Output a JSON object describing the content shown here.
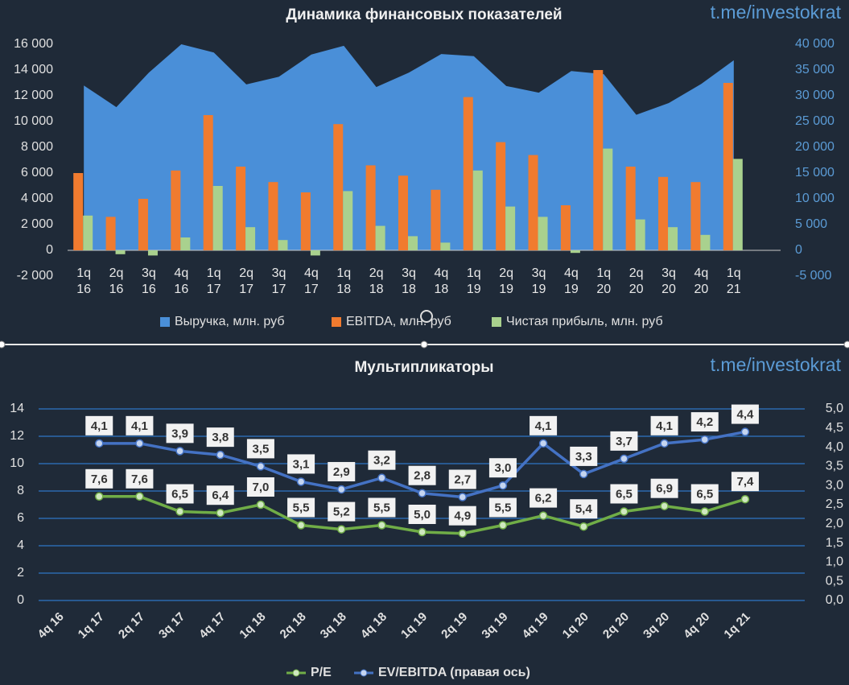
{
  "chart_data": [
    {
      "type": "bar-area",
      "title": "Динамика финансовых показателей",
      "annotation": "t.me/investokrat",
      "categories": [
        "1q 16",
        "2q 16",
        "3q 16",
        "4q 16",
        "1q 17",
        "2q 17",
        "3q 17",
        "4q 17",
        "1q 18",
        "2q 18",
        "3q 18",
        "4q 18",
        "1q 19",
        "2q 19",
        "3q 19",
        "4q 19",
        "1q 20",
        "2q 20",
        "3q 20",
        "4q 20",
        "1q 21"
      ],
      "series": [
        {
          "name": "Выручка, млн. руб",
          "color": "#4a8fd8",
          "kind": "area",
          "axis": "y2",
          "values": [
            32000,
            27800,
            34500,
            40000,
            38400,
            32200,
            33700,
            38000,
            39700,
            31700,
            34500,
            38100,
            37700,
            31900,
            30600,
            34800,
            34200,
            26300,
            28600,
            32300,
            36900
          ]
        },
        {
          "name": "EBITDA, млн. руб",
          "color": "#f07b2f",
          "kind": "bar",
          "values": [
            6000,
            2600,
            4000,
            6200,
            10500,
            6500,
            5300,
            4500,
            9800,
            6600,
            5800,
            4700,
            11900,
            8400,
            7400,
            3500,
            14000,
            6500,
            5700,
            5300,
            13000
          ]
        },
        {
          "name": "Чистая прибыль, млн. руб",
          "color": "#a9d18e",
          "kind": "bar",
          "values": [
            2700,
            -300,
            -400,
            1000,
            5000,
            1800,
            800,
            -400,
            4600,
            1900,
            1100,
            600,
            6200,
            3400,
            2600,
            -200,
            7900,
            2400,
            1800,
            1200,
            7100
          ]
        }
      ],
      "ylim": [
        -2000,
        16000
      ],
      "yticks": [
        {
          "value": -2000,
          "label": "-2 000"
        },
        0,
        {
          "value": 2000,
          "label": "2 000"
        },
        {
          "value": 4000,
          "label": "4 000"
        },
        {
          "value": 6000,
          "label": "6 000"
        },
        {
          "value": 8000,
          "label": "8 000"
        },
        {
          "value": 10000,
          "label": "10 000"
        },
        {
          "value": 12000,
          "label": "12 000"
        },
        {
          "value": 14000,
          "label": "14 000"
        },
        {
          "value": 16000,
          "label": "16 000"
        }
      ],
      "y2lim": [
        -5000,
        40000
      ],
      "y2ticks": [
        {
          "value": -5000,
          "label": "-5 000"
        },
        0,
        {
          "value": 5000,
          "label": "5 000"
        },
        {
          "value": 10000,
          "label": "10 000"
        },
        {
          "value": 15000,
          "label": "15 000"
        },
        {
          "value": 20000,
          "label": "20 000"
        },
        {
          "value": 25000,
          "label": "25 000"
        },
        {
          "value": 30000,
          "label": "30 000"
        },
        {
          "value": 35000,
          "label": "35 000"
        },
        {
          "value": 40000,
          "label": "40 000"
        }
      ],
      "legend": "bottom"
    },
    {
      "type": "line",
      "title": "Мультипликаторы",
      "annotation": "t.me/investokrat",
      "categories": [
        "4q 16",
        "1q 17",
        "2q 17",
        "3q 17",
        "4q 17",
        "1q 18",
        "2q 18",
        "3q 18",
        "4q 18",
        "1q 19",
        "2q 19",
        "3q 19",
        "4q 19",
        "1q 20",
        "2q 20",
        "3q 20",
        "4q 20",
        "1q 21"
      ],
      "series": [
        {
          "name": "P/E",
          "color": "#70ad47",
          "values": [
            null,
            7.6,
            7.6,
            6.5,
            6.4,
            7.0,
            5.5,
            5.2,
            5.5,
            5.0,
            4.9,
            5.5,
            6.2,
            5.4,
            6.5,
            6.9,
            6.5,
            7.4
          ],
          "value_labels": [
            null,
            "7,6",
            "7,6",
            "6,5",
            "6,4",
            "7,0",
            "5,5",
            "5,2",
            "5,5",
            "5,0",
            "4,9",
            "5,5",
            "6,2",
            "5,4",
            "6,5",
            "6,9",
            "6,5",
            "7,4"
          ]
        },
        {
          "name": "EV/EBITDA (правая ось)",
          "color": "#4472c4",
          "axis": "y2",
          "values": [
            null,
            4.1,
            4.1,
            3.9,
            3.8,
            3.5,
            3.1,
            2.9,
            3.2,
            2.8,
            2.7,
            3.0,
            4.1,
            3.3,
            3.7,
            4.1,
            4.2,
            4.4
          ],
          "value_labels": [
            null,
            "4,1",
            "4,1",
            "3,9",
            "3,8",
            "3,5",
            "3,1",
            "2,9",
            "3,2",
            "2,8",
            "2,7",
            "3,0",
            "4,1",
            "3,3",
            "3,7",
            "4,1",
            "4,2",
            "4,4"
          ]
        }
      ],
      "ylim": [
        0,
        14
      ],
      "yticks": [
        0,
        2,
        4,
        6,
        8,
        10,
        12,
        14
      ],
      "y2lim": [
        0,
        5
      ],
      "y2ticks": [
        {
          "value": 0,
          "label": "0,0"
        },
        {
          "value": 0.5,
          "label": "0,5"
        },
        {
          "value": 1,
          "label": "1,0"
        },
        {
          "value": 1.5,
          "label": "1,5"
        },
        {
          "value": 2,
          "label": "2,0"
        },
        {
          "value": 2.5,
          "label": "2,5"
        },
        {
          "value": 3,
          "label": "3,0"
        },
        {
          "value": 3.5,
          "label": "3,5"
        },
        {
          "value": 4,
          "label": "4,0"
        },
        {
          "value": 4.5,
          "label": "4,5"
        },
        {
          "value": 5,
          "label": "5,0"
        }
      ],
      "grid": true,
      "legend": "bottom"
    }
  ]
}
